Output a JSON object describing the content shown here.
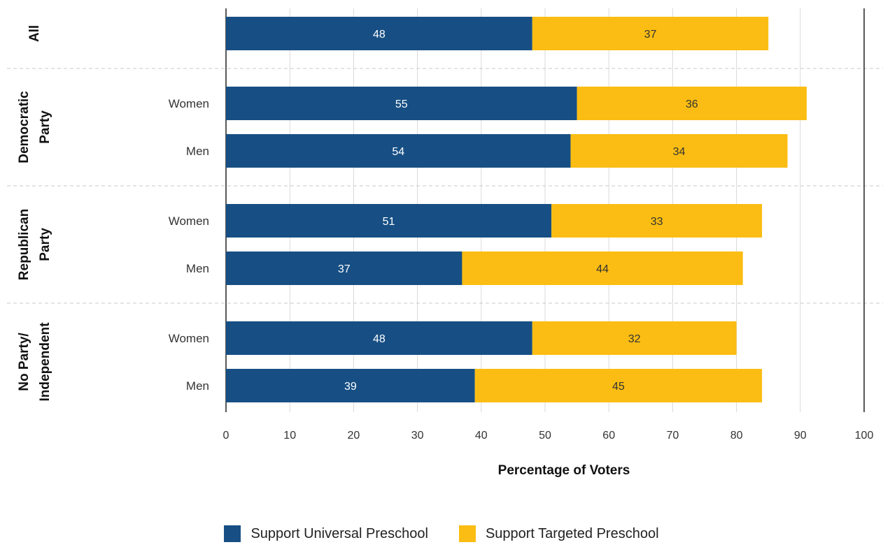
{
  "chart_data": {
    "type": "bar",
    "orientation": "horizontal",
    "stacked": true,
    "xlabel": "Percentage of Voters",
    "xlim": [
      0,
      100
    ],
    "xticks": [
      "0",
      "10",
      "20",
      "30",
      "40",
      "50",
      "60",
      "70",
      "80",
      "90",
      "100"
    ],
    "grid": true,
    "legend_position": "bottom-center",
    "groups": [
      {
        "label": "All",
        "rows": [
          {
            "label": "",
            "values": [
              48,
              37
            ]
          }
        ]
      },
      {
        "label": "Democratic\nParty",
        "rows": [
          {
            "label": "Women",
            "values": [
              55,
              36
            ]
          },
          {
            "label": "Men",
            "values": [
              54,
              34
            ]
          }
        ]
      },
      {
        "label": "Republican\nParty",
        "rows": [
          {
            "label": "Women",
            "values": [
              51,
              33
            ]
          },
          {
            "label": "Men",
            "values": [
              37,
              44
            ]
          }
        ]
      },
      {
        "label": "No Party/\nIndependent",
        "rows": [
          {
            "label": "Women",
            "values": [
              48,
              32
            ]
          },
          {
            "label": "Men",
            "values": [
              39,
              45
            ]
          }
        ]
      }
    ],
    "series": [
      {
        "name": "Support Universal Preschool",
        "color": "#174f84",
        "label_color": "#ffffff"
      },
      {
        "name": "Support Targeted Preschool",
        "color": "#fbbd13",
        "label_color": "#333333"
      }
    ]
  }
}
